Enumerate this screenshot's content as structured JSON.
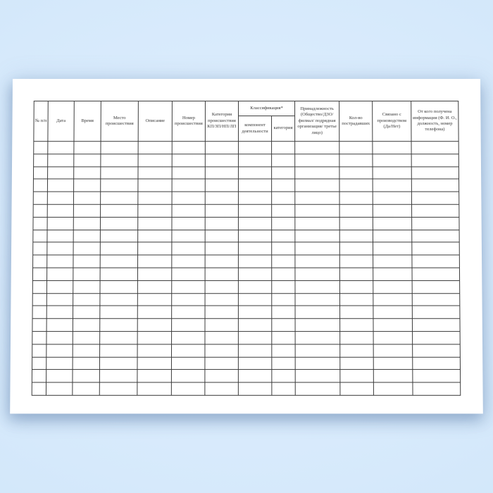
{
  "colors": {
    "background_blue": "#d3e7fa",
    "paper": "#ffffff",
    "table_border": "#3d3d3d",
    "header_text": "#333333"
  },
  "table": {
    "empty_rows": 20,
    "total_columns": 13,
    "columns": [
      "№ п/п",
      "Дата",
      "Время",
      "Место происшествия",
      "Описание",
      "Номер происшествия",
      "Категория происшествия КП/ЗП/НП/ЛП"
    ],
    "classification": {
      "label": "Классификация*",
      "sub_columns": [
        "компонент деятельности",
        "категория"
      ]
    },
    "columns_after": [
      "Принадлежность (Общество/ДЗО/ филиал/ подрядная организация/ третье лицо)",
      "Кол-во пострадавших",
      "Связано с производством (Да/Нет)",
      "От кого получена информация (Ф. И. О., должность, номер телефона)"
    ]
  }
}
